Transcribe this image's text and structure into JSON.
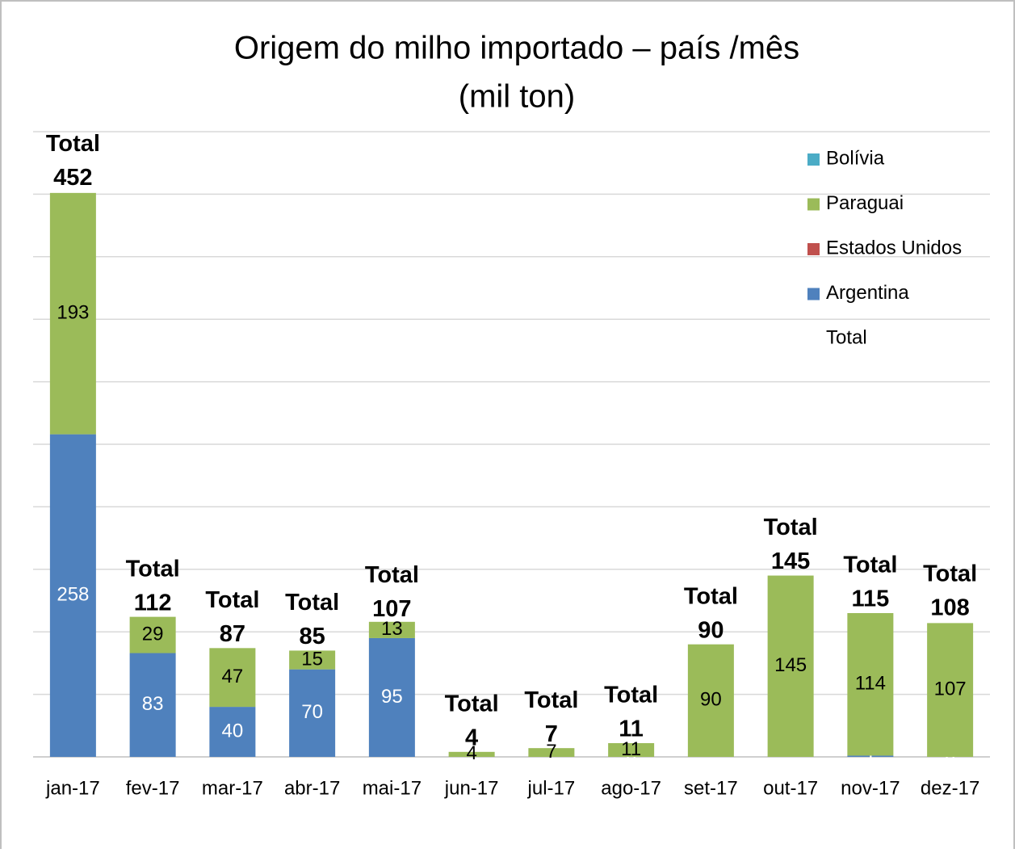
{
  "chart_data": {
    "type": "stacked_bar",
    "title": "Origem do milho importado – país /mês",
    "subtitle": "(mil ton)",
    "categories": [
      "jan-17",
      "fev-17",
      "mar-17",
      "abr-17",
      "mai-17",
      "jun-17",
      "jul-17",
      "ago-17",
      "set-17",
      "out-17",
      "nov-17",
      "dez-17"
    ],
    "series": [
      {
        "name": "Argentina",
        "color": "#4f81bd",
        "label_color": "#ffffff",
        "values": [
          258,
          83,
          40,
          70,
          95,
          null,
          null,
          0,
          null,
          null,
          1,
          0
        ]
      },
      {
        "name": "Estados Unidos",
        "color": "#c0504d",
        "label_color": "#000000",
        "values": [
          null,
          null,
          null,
          null,
          null,
          null,
          null,
          null,
          null,
          null,
          null,
          null
        ]
      },
      {
        "name": "Paraguai",
        "color": "#9bbb59",
        "label_color": "#000000",
        "values": [
          193,
          29,
          47,
          15,
          13,
          4,
          7,
          11,
          90,
          145,
          114,
          107
        ]
      },
      {
        "name": "Bolívia",
        "color": "#4bacc6",
        "label_color": "#000000",
        "values": [
          null,
          null,
          null,
          null,
          null,
          null,
          null,
          null,
          null,
          null,
          null,
          null
        ]
      }
    ],
    "totals": {
      "name": "Total",
      "values": [
        452,
        112,
        87,
        85,
        107,
        4,
        7,
        11,
        90,
        145,
        115,
        108
      ]
    },
    "ylim": [
      0,
      500
    ],
    "yticks": [
      0,
      50,
      100,
      150,
      200,
      250,
      300,
      350,
      400,
      450,
      500
    ],
    "grid": true,
    "legend": "right"
  }
}
